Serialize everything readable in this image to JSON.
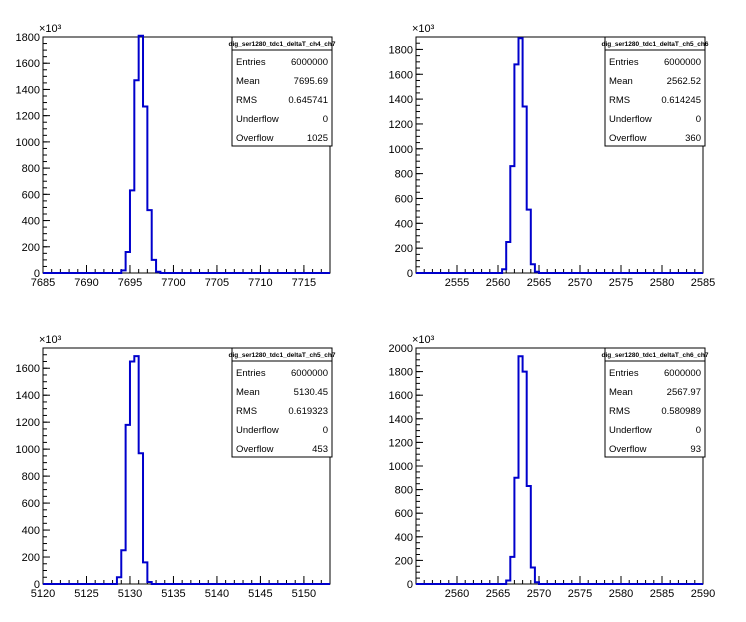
{
  "chart_data": [
    {
      "type": "histogram",
      "title": "dig_ser1280_tdc1_deltaT_ch4_ch7",
      "multiplier": "×10³",
      "xlim": [
        7685,
        7718
      ],
      "ylim": [
        0,
        1800
      ],
      "xticks": [
        7685,
        7690,
        7695,
        7700,
        7705,
        7710,
        7715
      ],
      "yticks": [
        0,
        200,
        400,
        600,
        800,
        1000,
        1200,
        1400,
        1600,
        1800
      ],
      "bin_width": 0.5,
      "bins": [
        {
          "x": 7694.0,
          "y": 20
        },
        {
          "x": 7694.5,
          "y": 160
        },
        {
          "x": 7695.0,
          "y": 630
        },
        {
          "x": 7695.5,
          "y": 1470
        },
        {
          "x": 7696.0,
          "y": 1810
        },
        {
          "x": 7696.5,
          "y": 1270
        },
        {
          "x": 7697.0,
          "y": 480
        },
        {
          "x": 7697.5,
          "y": 100
        },
        {
          "x": 7698.0,
          "y": 10
        }
      ],
      "stats": [
        {
          "label": "Entries",
          "value": "6000000"
        },
        {
          "label": "Mean",
          "value": "7695.69"
        },
        {
          "label": "RMS",
          "value": "0.645741"
        },
        {
          "label": "Underflow",
          "value": "0"
        },
        {
          "label": "Overflow",
          "value": "1025"
        }
      ]
    },
    {
      "type": "histogram",
      "title": "dig_ser1280_tdc1_deltaT_ch5_ch6",
      "multiplier": "×10³",
      "xlim": [
        2550,
        2585
      ],
      "ylim": [
        0,
        1900
      ],
      "xticks": [
        2555,
        2560,
        2565,
        2570,
        2575,
        2580,
        2585
      ],
      "yticks": [
        0,
        200,
        400,
        600,
        800,
        1000,
        1200,
        1400,
        1600,
        1800
      ],
      "bin_width": 0.5,
      "bins": [
        {
          "x": 2560.5,
          "y": 30
        },
        {
          "x": 2561.0,
          "y": 250
        },
        {
          "x": 2561.5,
          "y": 860
        },
        {
          "x": 2562.0,
          "y": 1680
        },
        {
          "x": 2562.5,
          "y": 1890
        },
        {
          "x": 2563.0,
          "y": 1340
        },
        {
          "x": 2563.5,
          "y": 510
        },
        {
          "x": 2564.0,
          "y": 70
        },
        {
          "x": 2564.5,
          "y": 10
        }
      ],
      "stats": [
        {
          "label": "Entries",
          "value": "6000000"
        },
        {
          "label": "Mean",
          "value": "2562.52"
        },
        {
          "label": "RMS",
          "value": "0.614245"
        },
        {
          "label": "Underflow",
          "value": "0"
        },
        {
          "label": "Overflow",
          "value": "360"
        }
      ]
    },
    {
      "type": "histogram",
      "title": "dig_ser1280_tdc1_deltaT_ch5_ch7",
      "multiplier": "×10³",
      "xlim": [
        5120,
        5153
      ],
      "ylim": [
        0,
        1750
      ],
      "xticks": [
        5120,
        5125,
        5130,
        5135,
        5140,
        5145,
        5150
      ],
      "yticks": [
        0,
        200,
        400,
        600,
        800,
        1000,
        1200,
        1400,
        1600
      ],
      "bin_width": 0.5,
      "bins": [
        {
          "x": 5128.5,
          "y": 50
        },
        {
          "x": 5129.0,
          "y": 250
        },
        {
          "x": 5129.5,
          "y": 1180
        },
        {
          "x": 5130.0,
          "y": 1650
        },
        {
          "x": 5130.5,
          "y": 1690
        },
        {
          "x": 5131.0,
          "y": 970
        },
        {
          "x": 5131.5,
          "y": 160
        },
        {
          "x": 5132.0,
          "y": 15
        }
      ],
      "stats": [
        {
          "label": "Entries",
          "value": "6000000"
        },
        {
          "label": "Mean",
          "value": "5130.45"
        },
        {
          "label": "RMS",
          "value": "0.619323"
        },
        {
          "label": "Underflow",
          "value": "0"
        },
        {
          "label": "Overflow",
          "value": "453"
        }
      ]
    },
    {
      "type": "histogram",
      "title": "dig_ser1280_tdc1_deltaT_ch6_ch7",
      "multiplier": "×10³",
      "xlim": [
        2555,
        2590
      ],
      "ylim": [
        0,
        2000
      ],
      "xticks": [
        2560,
        2565,
        2570,
        2575,
        2580,
        2585,
        2590
      ],
      "yticks": [
        0,
        200,
        400,
        600,
        800,
        1000,
        1200,
        1400,
        1600,
        1800,
        2000
      ],
      "bin_width": 0.5,
      "bins": [
        {
          "x": 2566.0,
          "y": 30
        },
        {
          "x": 2566.5,
          "y": 230
        },
        {
          "x": 2567.0,
          "y": 900
        },
        {
          "x": 2567.5,
          "y": 1930
        },
        {
          "x": 2568.0,
          "y": 1800
        },
        {
          "x": 2568.5,
          "y": 830
        },
        {
          "x": 2569.0,
          "y": 140
        },
        {
          "x": 2569.5,
          "y": 15
        }
      ],
      "stats": [
        {
          "label": "Entries",
          "value": "6000000"
        },
        {
          "label": "Mean",
          "value": "2567.97"
        },
        {
          "label": "RMS",
          "value": "0.580989"
        },
        {
          "label": "Underflow",
          "value": "0"
        },
        {
          "label": "Overflow",
          "value": "93"
        }
      ]
    }
  ],
  "colors": {
    "histogram_line": "#0000cc",
    "axis": "#000000",
    "background": "#ffffff"
  }
}
